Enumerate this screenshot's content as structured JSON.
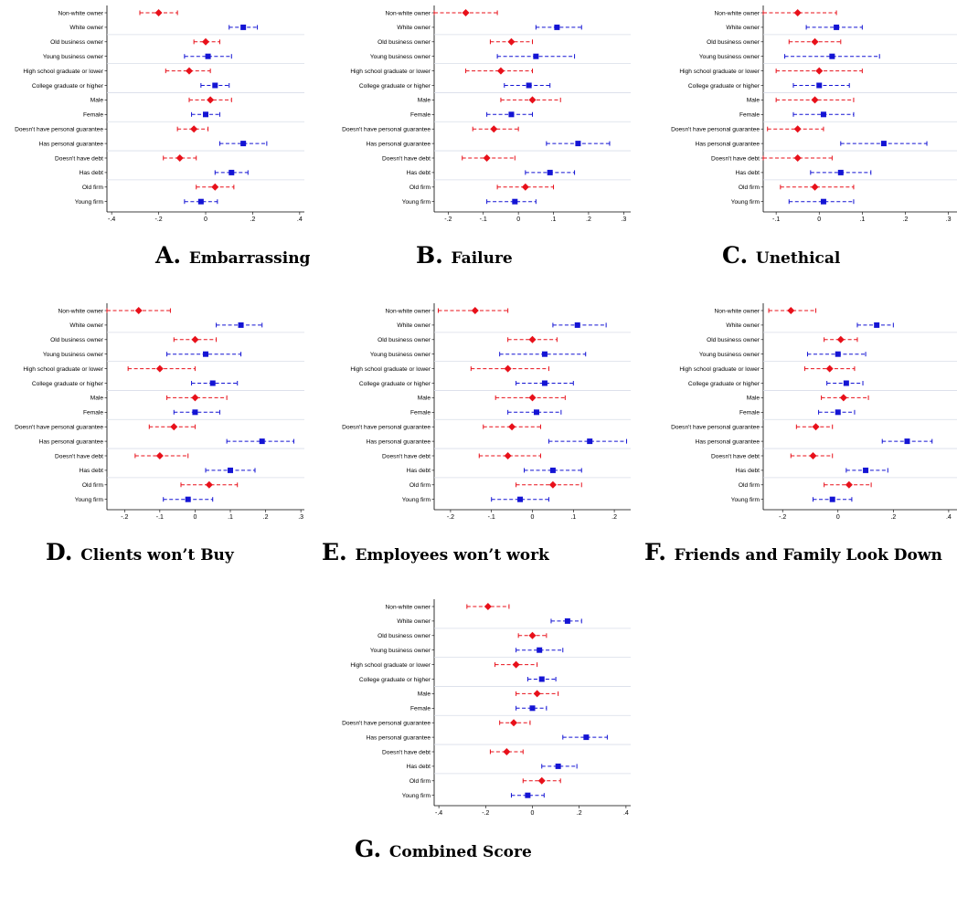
{
  "row_labels": [
    "Non-white owner",
    "White owner",
    "Old business owner",
    "Young business owner",
    "High school graduate or lower",
    "College graduate or higher",
    "Male",
    "Female",
    "Doesn't have personal guarantee",
    "Has personal guarantee",
    "Doesn't have debt",
    "Has debt",
    "Old firm",
    "Young firm"
  ],
  "colors": {
    "group_a": "#e8101a",
    "group_b": "#1414d4",
    "separator": "#d8dde8",
    "axis": "#000000"
  },
  "chart_data": [
    {
      "type": "coefficient-plot",
      "letter": "A.",
      "title": "Embarrassing",
      "xlim": [
        -0.42,
        0.42
      ],
      "xticks": [
        -0.4,
        -0.2,
        0,
        0.2,
        0.4
      ],
      "xtick_labels": [
        "-.4",
        "-.2",
        "0",
        ".2",
        ".4"
      ],
      "points": [
        {
          "est": -0.2,
          "lo": -0.28,
          "hi": -0.12
        },
        {
          "est": 0.16,
          "lo": 0.1,
          "hi": 0.22
        },
        {
          "est": 0.0,
          "lo": -0.05,
          "hi": 0.06
        },
        {
          "est": 0.01,
          "lo": -0.09,
          "hi": 0.11
        },
        {
          "est": -0.07,
          "lo": -0.17,
          "hi": 0.02
        },
        {
          "est": 0.04,
          "lo": -0.02,
          "hi": 0.1
        },
        {
          "est": 0.02,
          "lo": -0.07,
          "hi": 0.11
        },
        {
          "est": 0.0,
          "lo": -0.06,
          "hi": 0.06
        },
        {
          "est": -0.05,
          "lo": -0.12,
          "hi": 0.01
        },
        {
          "est": 0.16,
          "lo": 0.06,
          "hi": 0.26
        },
        {
          "est": -0.11,
          "lo": -0.18,
          "hi": -0.04
        },
        {
          "est": 0.11,
          "lo": 0.04,
          "hi": 0.18
        },
        {
          "est": 0.04,
          "lo": -0.04,
          "hi": 0.12
        },
        {
          "est": -0.02,
          "lo": -0.09,
          "hi": 0.05
        }
      ]
    },
    {
      "type": "coefficient-plot",
      "letter": "B.",
      "title": "Failure",
      "xlim": [
        -0.24,
        0.32
      ],
      "xticks": [
        -0.2,
        -0.1,
        0,
        0.1,
        0.2,
        0.3
      ],
      "xtick_labels": [
        "-.2",
        "-.1",
        "0",
        ".1",
        ".2",
        ".3"
      ],
      "points": [
        {
          "est": -0.15,
          "lo": -0.24,
          "hi": -0.06
        },
        {
          "est": 0.11,
          "lo": 0.05,
          "hi": 0.18
        },
        {
          "est": -0.02,
          "lo": -0.08,
          "hi": 0.04
        },
        {
          "est": 0.05,
          "lo": -0.06,
          "hi": 0.16
        },
        {
          "est": -0.05,
          "lo": -0.15,
          "hi": 0.04
        },
        {
          "est": 0.03,
          "lo": -0.04,
          "hi": 0.09
        },
        {
          "est": 0.04,
          "lo": -0.05,
          "hi": 0.12
        },
        {
          "est": -0.02,
          "lo": -0.09,
          "hi": 0.04
        },
        {
          "est": -0.07,
          "lo": -0.13,
          "hi": 0.0
        },
        {
          "est": 0.17,
          "lo": 0.08,
          "hi": 0.26
        },
        {
          "est": -0.09,
          "lo": -0.16,
          "hi": -0.01
        },
        {
          "est": 0.09,
          "lo": 0.02,
          "hi": 0.16
        },
        {
          "est": 0.02,
          "lo": -0.06,
          "hi": 0.1
        },
        {
          "est": -0.01,
          "lo": -0.09,
          "hi": 0.05
        }
      ]
    },
    {
      "type": "coefficient-plot",
      "letter": "C.",
      "title": "Unethical",
      "xlim": [
        -0.13,
        0.32
      ],
      "xticks": [
        -0.1,
        0,
        0.1,
        0.2,
        0.3
      ],
      "xtick_labels": [
        "-.1",
        "0",
        ".1",
        ".2",
        ".3"
      ],
      "points": [
        {
          "est": -0.05,
          "lo": -0.13,
          "hi": 0.04
        },
        {
          "est": 0.04,
          "lo": -0.03,
          "hi": 0.1
        },
        {
          "est": -0.01,
          "lo": -0.07,
          "hi": 0.05
        },
        {
          "est": 0.03,
          "lo": -0.08,
          "hi": 0.14
        },
        {
          "est": 0.0,
          "lo": -0.1,
          "hi": 0.1
        },
        {
          "est": 0.0,
          "lo": -0.06,
          "hi": 0.07
        },
        {
          "est": -0.01,
          "lo": -0.1,
          "hi": 0.08
        },
        {
          "est": 0.01,
          "lo": -0.06,
          "hi": 0.08
        },
        {
          "est": -0.05,
          "lo": -0.12,
          "hi": 0.01
        },
        {
          "est": 0.15,
          "lo": 0.05,
          "hi": 0.25
        },
        {
          "est": -0.05,
          "lo": -0.13,
          "hi": 0.03
        },
        {
          "est": 0.05,
          "lo": -0.02,
          "hi": 0.12
        },
        {
          "est": -0.01,
          "lo": -0.09,
          "hi": 0.08
        },
        {
          "est": 0.01,
          "lo": -0.07,
          "hi": 0.08
        }
      ]
    },
    {
      "type": "coefficient-plot",
      "letter": "D.",
      "title": "Clients won’t Buy",
      "xlim": [
        -0.25,
        0.31
      ],
      "xticks": [
        -0.2,
        -0.1,
        0,
        0.1,
        0.2,
        0.3
      ],
      "xtick_labels": [
        "-.2",
        "-.1",
        "0",
        ".1",
        ".2",
        ".3"
      ],
      "points": [
        {
          "est": -0.16,
          "lo": -0.25,
          "hi": -0.07
        },
        {
          "est": 0.13,
          "lo": 0.06,
          "hi": 0.19
        },
        {
          "est": 0.0,
          "lo": -0.06,
          "hi": 0.06
        },
        {
          "est": 0.03,
          "lo": -0.08,
          "hi": 0.13
        },
        {
          "est": -0.1,
          "lo": -0.19,
          "hi": 0.0
        },
        {
          "est": 0.05,
          "lo": -0.01,
          "hi": 0.12
        },
        {
          "est": 0.0,
          "lo": -0.08,
          "hi": 0.09
        },
        {
          "est": 0.0,
          "lo": -0.06,
          "hi": 0.07
        },
        {
          "est": -0.06,
          "lo": -0.13,
          "hi": 0.0
        },
        {
          "est": 0.19,
          "lo": 0.09,
          "hi": 0.28
        },
        {
          "est": -0.1,
          "lo": -0.17,
          "hi": -0.02
        },
        {
          "est": 0.1,
          "lo": 0.03,
          "hi": 0.17
        },
        {
          "est": 0.04,
          "lo": -0.04,
          "hi": 0.12
        },
        {
          "est": -0.02,
          "lo": -0.09,
          "hi": 0.05
        }
      ]
    },
    {
      "type": "coefficient-plot",
      "letter": "E.",
      "title": "Employees won’t work",
      "xlim": [
        -0.24,
        0.24
      ],
      "xticks": [
        -0.2,
        -0.1,
        0,
        0.1,
        0.2
      ],
      "xtick_labels": [
        "-.2",
        "-.1",
        "0",
        ".1",
        ".2"
      ],
      "points": [
        {
          "est": -0.14,
          "lo": -0.23,
          "hi": -0.06
        },
        {
          "est": 0.11,
          "lo": 0.05,
          "hi": 0.18
        },
        {
          "est": 0.0,
          "lo": -0.06,
          "hi": 0.06
        },
        {
          "est": 0.03,
          "lo": -0.08,
          "hi": 0.13
        },
        {
          "est": -0.06,
          "lo": -0.15,
          "hi": 0.04
        },
        {
          "est": 0.03,
          "lo": -0.04,
          "hi": 0.1
        },
        {
          "est": 0.0,
          "lo": -0.09,
          "hi": 0.08
        },
        {
          "est": 0.01,
          "lo": -0.06,
          "hi": 0.07
        },
        {
          "est": -0.05,
          "lo": -0.12,
          "hi": 0.02
        },
        {
          "est": 0.14,
          "lo": 0.04,
          "hi": 0.23
        },
        {
          "est": -0.06,
          "lo": -0.13,
          "hi": 0.02
        },
        {
          "est": 0.05,
          "lo": -0.02,
          "hi": 0.12
        },
        {
          "est": 0.05,
          "lo": -0.04,
          "hi": 0.12
        },
        {
          "est": -0.03,
          "lo": -0.1,
          "hi": 0.04
        }
      ]
    },
    {
      "type": "coefficient-plot",
      "letter": "F.",
      "title": "Friends and Family Look Down",
      "xlim": [
        -0.27,
        0.43
      ],
      "xticks": [
        -0.2,
        0,
        0.2,
        0.4
      ],
      "xtick_labels": [
        "-.2",
        "0",
        ".2",
        ".4"
      ],
      "points": [
        {
          "est": -0.17,
          "lo": -0.25,
          "hi": -0.08
        },
        {
          "est": 0.14,
          "lo": 0.07,
          "hi": 0.2
        },
        {
          "est": 0.01,
          "lo": -0.05,
          "hi": 0.07
        },
        {
          "est": 0.0,
          "lo": -0.11,
          "hi": 0.1
        },
        {
          "est": -0.03,
          "lo": -0.12,
          "hi": 0.06
        },
        {
          "est": 0.03,
          "lo": -0.04,
          "hi": 0.09
        },
        {
          "est": 0.02,
          "lo": -0.06,
          "hi": 0.11
        },
        {
          "est": 0.0,
          "lo": -0.07,
          "hi": 0.06
        },
        {
          "est": -0.08,
          "lo": -0.15,
          "hi": -0.02
        },
        {
          "est": 0.25,
          "lo": 0.16,
          "hi": 0.34
        },
        {
          "est": -0.09,
          "lo": -0.17,
          "hi": -0.02
        },
        {
          "est": 0.1,
          "lo": 0.03,
          "hi": 0.18
        },
        {
          "est": 0.04,
          "lo": -0.05,
          "hi": 0.12
        },
        {
          "est": -0.02,
          "lo": -0.09,
          "hi": 0.05
        }
      ]
    },
    {
      "type": "coefficient-plot",
      "letter": "G.",
      "title": "Combined Score",
      "xlim": [
        -0.42,
        0.42
      ],
      "xticks": [
        -0.4,
        -0.2,
        0,
        0.2,
        0.4
      ],
      "xtick_labels": [
        "-.4",
        "-.2",
        "0",
        ".2",
        ".4"
      ],
      "points": [
        {
          "est": -0.19,
          "lo": -0.28,
          "hi": -0.1
        },
        {
          "est": 0.15,
          "lo": 0.08,
          "hi": 0.21
        },
        {
          "est": 0.0,
          "lo": -0.06,
          "hi": 0.06
        },
        {
          "est": 0.03,
          "lo": -0.07,
          "hi": 0.13
        },
        {
          "est": -0.07,
          "lo": -0.16,
          "hi": 0.02
        },
        {
          "est": 0.04,
          "lo": -0.02,
          "hi": 0.1
        },
        {
          "est": 0.02,
          "lo": -0.07,
          "hi": 0.11
        },
        {
          "est": 0.0,
          "lo": -0.07,
          "hi": 0.06
        },
        {
          "est": -0.08,
          "lo": -0.14,
          "hi": -0.01
        },
        {
          "est": 0.23,
          "lo": 0.13,
          "hi": 0.32
        },
        {
          "est": -0.11,
          "lo": -0.18,
          "hi": -0.04
        },
        {
          "est": 0.11,
          "lo": 0.04,
          "hi": 0.19
        },
        {
          "est": 0.04,
          "lo": -0.04,
          "hi": 0.12
        },
        {
          "est": -0.02,
          "lo": -0.09,
          "hi": 0.05
        }
      ]
    }
  ]
}
